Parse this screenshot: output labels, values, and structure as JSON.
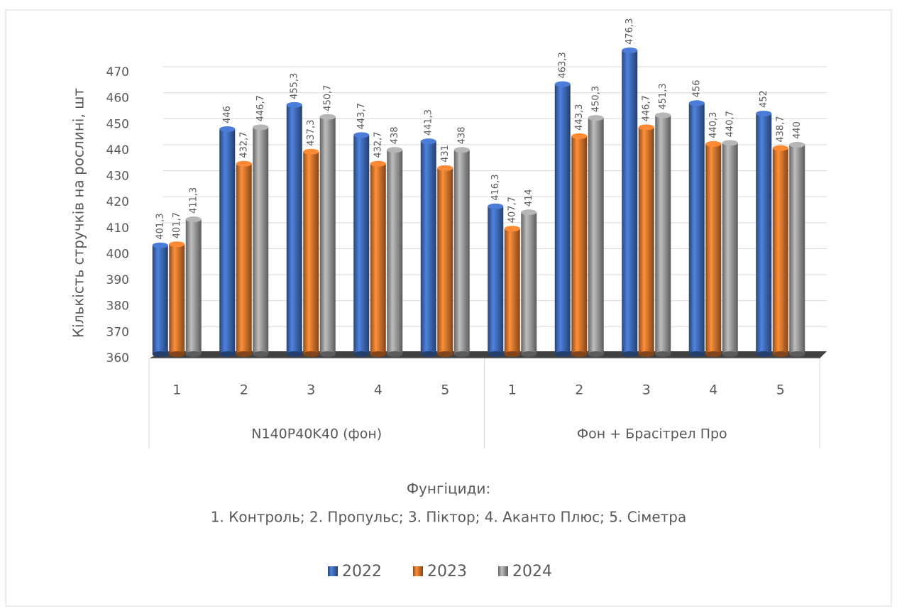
{
  "chart_data": {
    "type": "bar3d",
    "ylabel": "Кількість стручків на рослині, шт",
    "xlabel": "Фунгіциди:",
    "annotation": "1. Контроль; 2. Пропульс; 3. Піктор; 4. Аканто Плюс; 5. Сіметра",
    "groups": [
      {
        "name": "N140P40K40 (фон)",
        "categories": [
          "1",
          "2",
          "3",
          "4",
          "5"
        ]
      },
      {
        "name": "Фон + Брасітрел Про",
        "categories": [
          "1",
          "2",
          "3",
          "4",
          "5"
        ]
      }
    ],
    "series": [
      {
        "name": "2022",
        "color": "#4472c4",
        "values": [
          401.3,
          446,
          455.3,
          443.7,
          441.3,
          416.3,
          463.3,
          476.3,
          456,
          452
        ],
        "value_labels": [
          "401,3",
          "446",
          "455,3",
          "443,7",
          "441,3",
          "416,3",
          "463,3",
          "476,3",
          "456",
          "452"
        ]
      },
      {
        "name": "2023",
        "color": "#ed7d31",
        "values": [
          401.7,
          432.7,
          437.3,
          432.7,
          431,
          407.7,
          443.3,
          446.7,
          440.3,
          438.7
        ],
        "value_labels": [
          "401,7",
          "432,7",
          "437,3",
          "432,7",
          "431",
          "407,7",
          "443,3",
          "446,7",
          "440,3",
          "438,7"
        ]
      },
      {
        "name": "2024",
        "color": "#a5a5a5",
        "values": [
          411.3,
          446.7,
          450.7,
          438,
          438,
          414,
          450.3,
          451.3,
          440.7,
          440
        ],
        "value_labels": [
          "411,3",
          "446,7",
          "450,7",
          "438",
          "438",
          "414",
          "450,3",
          "451,3",
          "440,7",
          "440"
        ]
      }
    ],
    "ylim": [
      360,
      470
    ],
    "yticks": [
      360,
      370,
      380,
      390,
      400,
      410,
      420,
      430,
      440,
      450,
      460,
      470
    ],
    "grid": true,
    "legend": "bottom"
  }
}
